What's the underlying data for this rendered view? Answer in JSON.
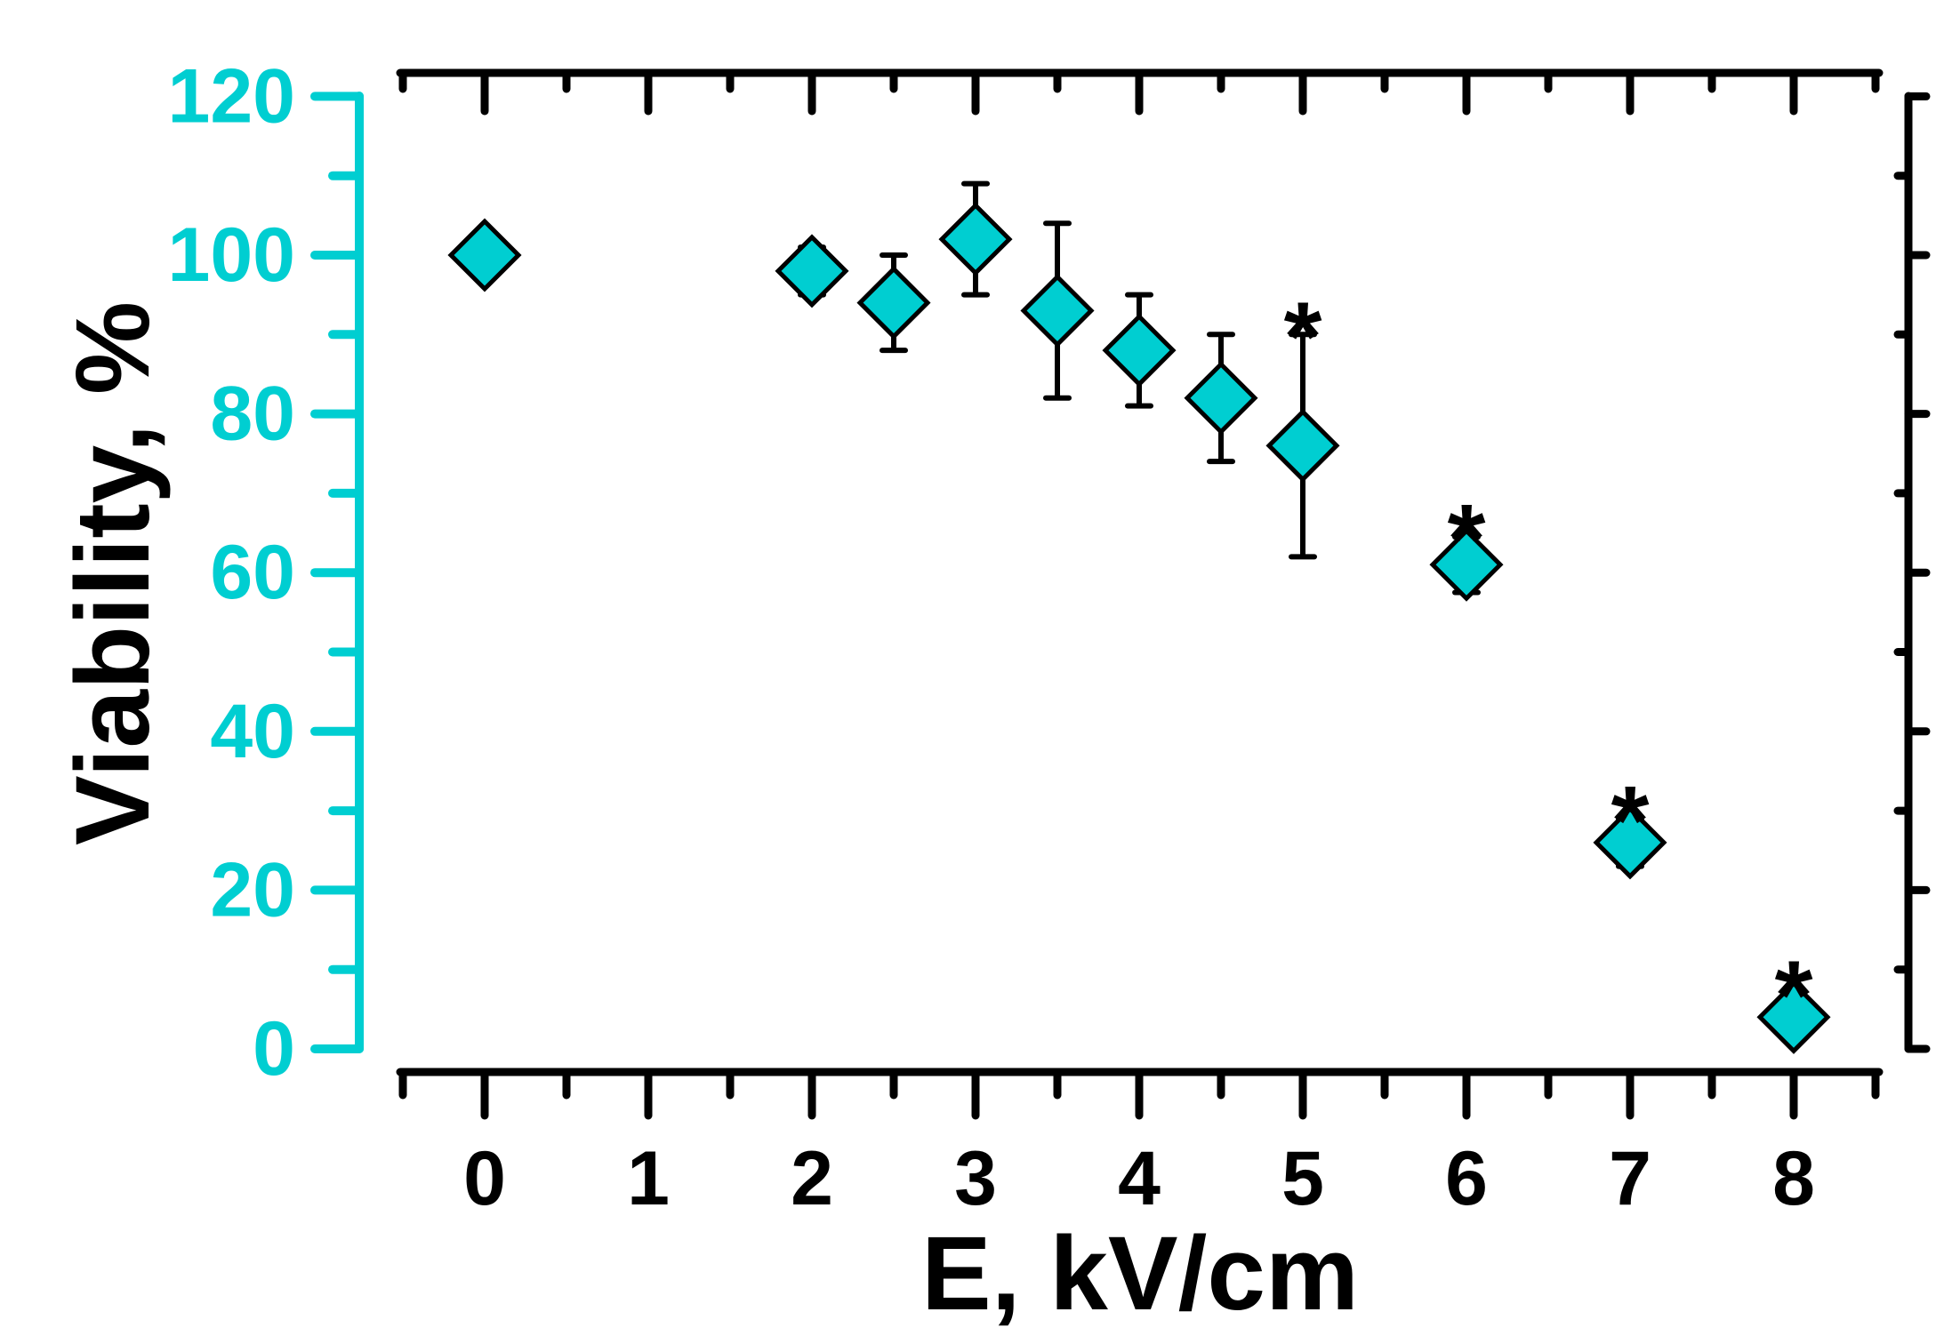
{
  "chart_data": {
    "type": "scatter",
    "title": "",
    "xlabel": "E, kV/cm",
    "ylabel": "Viability, %",
    "xlim": [
      -0.5,
      8.5
    ],
    "ylim": [
      0,
      120
    ],
    "x_ticks": [
      "0",
      "1",
      "2",
      "3",
      "4",
      "5",
      "6",
      "7",
      "8"
    ],
    "y_ticks": [
      "0",
      "20",
      "40",
      "60",
      "80",
      "100",
      "120"
    ],
    "legend": "none",
    "grid": false,
    "colors": {
      "marker": "#00CED1",
      "left_axis": "#00CED1",
      "frame": "#000000"
    },
    "marker": "diamond",
    "significance_symbol": "*",
    "series": [
      {
        "x": [
          0,
          2,
          2.5,
          3,
          3.5,
          4,
          4.5,
          5,
          6,
          7,
          8
        ],
        "y": [
          100,
          98,
          94,
          102,
          93,
          88,
          82,
          76,
          61,
          26,
          4
        ],
        "err": [
          0,
          3,
          6,
          7,
          11,
          7,
          8,
          14,
          3.5,
          3,
          2.5
        ],
        "significant": [
          false,
          false,
          false,
          false,
          false,
          false,
          false,
          true,
          true,
          true,
          true
        ]
      }
    ]
  }
}
